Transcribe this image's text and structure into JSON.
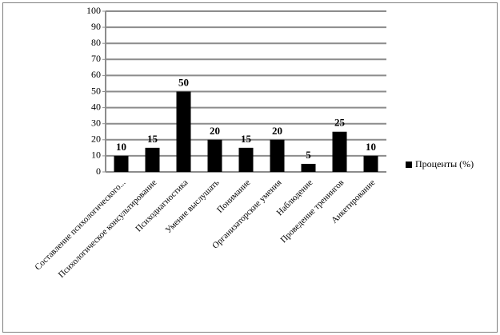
{
  "chart_data": {
    "type": "bar",
    "categories": [
      "Составление психологического...",
      "Психологическое консультирование",
      "Психодиагностика",
      "Умение выслушать",
      "Понимание",
      "Организаторские умения",
      "Наблюдение",
      "Проведение тренингов",
      "Анкетирование"
    ],
    "series": [
      {
        "name": "Проценты (%)",
        "color": "#000000",
        "values": [
          10,
          15,
          50,
          20,
          15,
          20,
          5,
          25,
          10
        ]
      }
    ],
    "ylim": [
      0,
      100
    ],
    "yticks": [
      0,
      10,
      20,
      30,
      40,
      50,
      60,
      70,
      80,
      90,
      100
    ],
    "grid": true,
    "data_labels": true,
    "legend": "right"
  }
}
